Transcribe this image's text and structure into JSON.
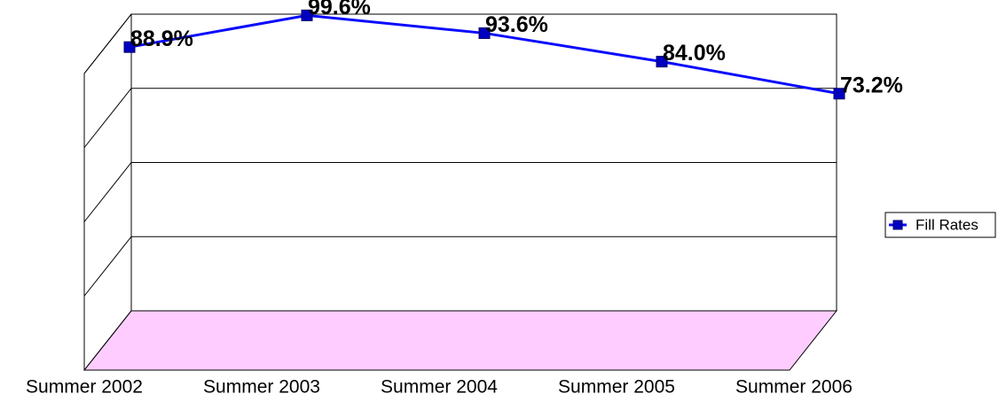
{
  "chart_data": {
    "type": "line",
    "categories": [
      "Summer 2002",
      "Summer 2003",
      "Summer 2004",
      "Summer 2005",
      "Summer 2006"
    ],
    "series": [
      {
        "name": "Fill Rates",
        "color": "#0a0aff",
        "values": [
          88.9,
          99.6,
          93.6,
          84.0,
          73.2
        ],
        "value_labels": [
          "88.9%",
          "99.6%",
          "93.6%",
          "84.0%",
          "73.2%"
        ]
      }
    ],
    "ylim": [
      0,
      100
    ],
    "yticks": [
      0,
      25,
      50,
      75,
      100
    ],
    "grid": true,
    "floor_color": "#ffccff",
    "legend": "right"
  }
}
